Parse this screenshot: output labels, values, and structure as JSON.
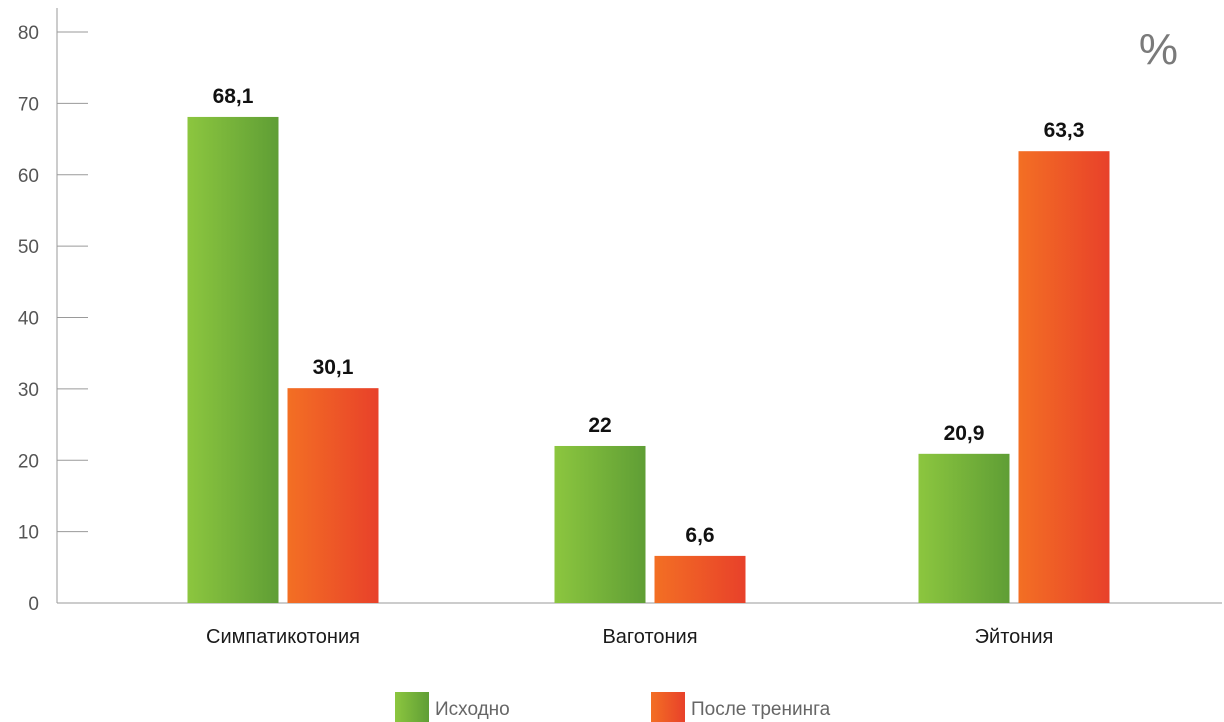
{
  "chart_data": {
    "type": "bar",
    "title": "",
    "unit_label": "%",
    "xlabel": "",
    "ylabel": "",
    "ylim": [
      0,
      80
    ],
    "yticks": [
      0,
      10,
      20,
      30,
      40,
      50,
      60,
      70,
      80
    ],
    "categories": [
      "Симпатикотония",
      "Ваготония",
      "Эйтония"
    ],
    "series": [
      {
        "name": "Исходно",
        "values": [
          68.1,
          22,
          20.9
        ],
        "labels": [
          "68,1",
          "22",
          "20,9"
        ],
        "color_start": "#8cc63f",
        "color_end": "#5f9e35"
      },
      {
        "name": "После тренинга",
        "values": [
          30.1,
          6.6,
          63.3
        ],
        "labels": [
          "30,1",
          "6,6",
          "63,3"
        ],
        "color_start": "#f36f24",
        "color_end": "#e8412a"
      }
    ],
    "grid": false,
    "legend_position": "bottom"
  }
}
